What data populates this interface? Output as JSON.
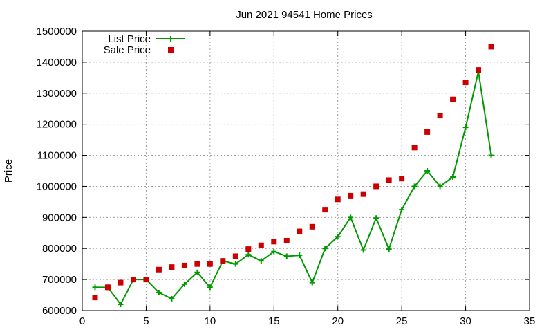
{
  "chart_data": {
    "type": "line",
    "title": "Jun 2021 94541 Home Prices",
    "xlabel": "",
    "ylabel": "Price",
    "xlim": [
      0,
      35
    ],
    "ylim": [
      600000,
      1500000
    ],
    "x_ticks": [
      0,
      5,
      10,
      15,
      20,
      25,
      30,
      35
    ],
    "y_ticks": [
      600000,
      700000,
      800000,
      900000,
      1000000,
      1100000,
      1200000,
      1300000,
      1400000,
      1500000
    ],
    "grid": true,
    "legend_position": "top-left",
    "series": [
      {
        "name": "List Price",
        "style": "line-with-plus-markers",
        "color": "#009900",
        "points": [
          [
            1,
            675000
          ],
          [
            2,
            675000
          ],
          [
            3,
            620000
          ],
          [
            4,
            700000
          ],
          [
            5,
            700000
          ],
          [
            6,
            658000
          ],
          [
            7,
            638000
          ],
          [
            8,
            685000
          ],
          [
            9,
            723000
          ],
          [
            10,
            675000
          ],
          [
            11,
            760000
          ],
          [
            12,
            750000
          ],
          [
            13,
            780000
          ],
          [
            14,
            760000
          ],
          [
            15,
            790000
          ],
          [
            16,
            775000
          ],
          [
            17,
            778000
          ],
          [
            18,
            690000
          ],
          [
            19,
            800000
          ],
          [
            20,
            838000
          ],
          [
            21,
            900000
          ],
          [
            22,
            795000
          ],
          [
            23,
            898000
          ],
          [
            24,
            798000
          ],
          [
            25,
            925000
          ],
          [
            26,
            1000000
          ],
          [
            27,
            1050000
          ],
          [
            28,
            1000000
          ],
          [
            29,
            1030000
          ],
          [
            30,
            1190000
          ],
          [
            31,
            1370000
          ],
          [
            32,
            1100000
          ]
        ]
      },
      {
        "name": "Sale Price",
        "style": "square-markers",
        "color": "#cc0000",
        "points": [
          [
            1,
            642000
          ],
          [
            2,
            675000
          ],
          [
            3,
            690000
          ],
          [
            4,
            700000
          ],
          [
            5,
            700000
          ],
          [
            6,
            732000
          ],
          [
            7,
            740000
          ],
          [
            8,
            745000
          ],
          [
            9,
            750000
          ],
          [
            10,
            750000
          ],
          [
            11,
            760000
          ],
          [
            12,
            775000
          ],
          [
            13,
            798000
          ],
          [
            14,
            810000
          ],
          [
            15,
            822000
          ],
          [
            16,
            825000
          ],
          [
            17,
            855000
          ],
          [
            18,
            870000
          ],
          [
            19,
            925000
          ],
          [
            20,
            958000
          ],
          [
            21,
            970000
          ],
          [
            22,
            975000
          ],
          [
            23,
            1000000
          ],
          [
            24,
            1020000
          ],
          [
            25,
            1025000
          ],
          [
            26,
            1125000
          ],
          [
            27,
            1175000
          ],
          [
            28,
            1228000
          ],
          [
            29,
            1280000
          ],
          [
            30,
            1335000
          ],
          [
            31,
            1375000
          ],
          [
            32,
            1450000
          ]
        ]
      }
    ]
  }
}
